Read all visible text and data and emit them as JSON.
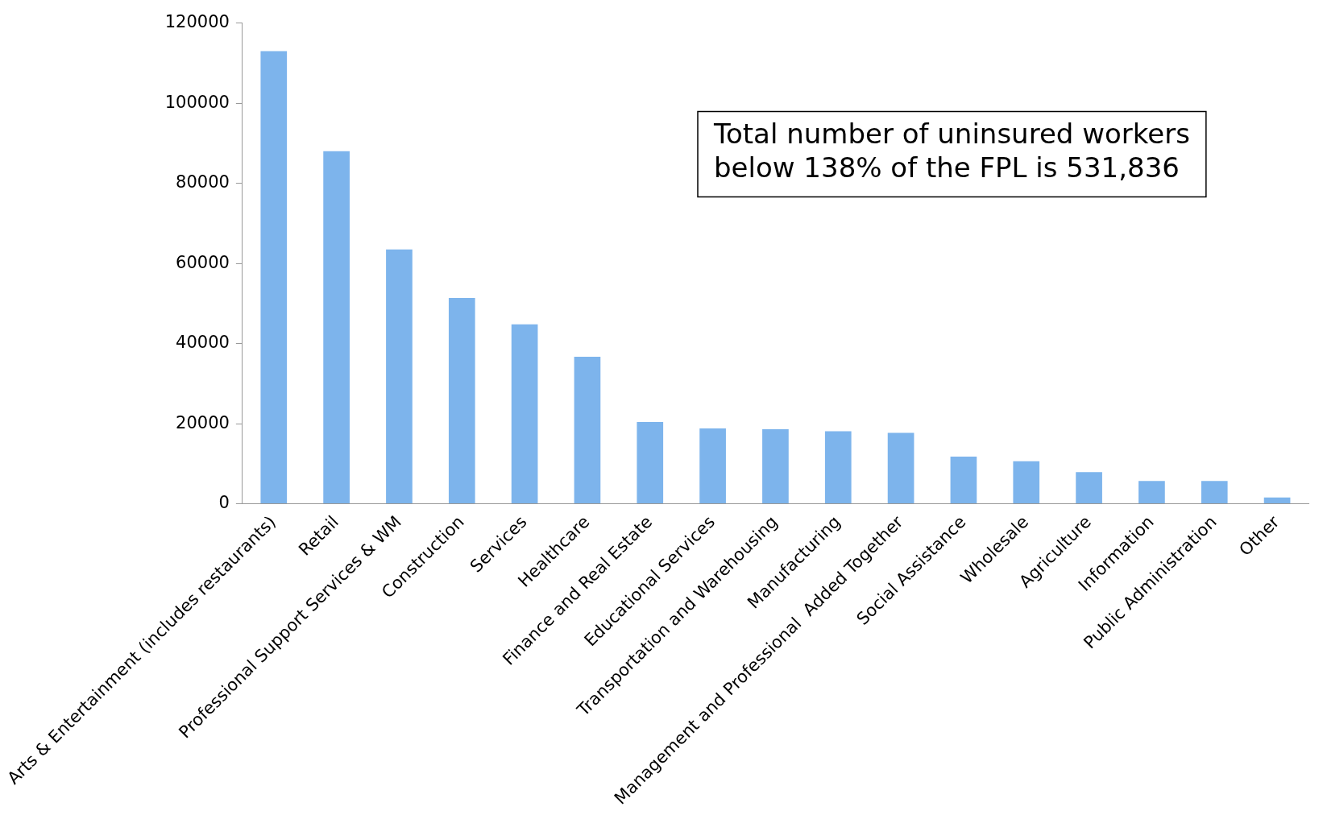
{
  "chart_data": {
    "type": "bar",
    "categories": [
      "Arts & Entertainment (includes restaurants)",
      "Retail",
      "Professional Support Services & WM",
      "Construction",
      "Services",
      "Healthcare",
      "Finance and Real Estate",
      "Educational Services",
      "Transportation and Warehousing",
      "Manufacturing",
      "Management and Professional  Added Together",
      "Social Assistance",
      "Wholesale",
      "Agriculture",
      "Information",
      "Public Administration",
      "Other"
    ],
    "values": [
      113000,
      88000,
      63500,
      51400,
      44800,
      36700,
      20400,
      18800,
      18600,
      18100,
      17700,
      11800,
      10600,
      7900,
      5700,
      5700,
      1600
    ],
    "color": "#7db4ec",
    "ylim": [
      0,
      120000
    ],
    "yticks": [
      0,
      20000,
      40000,
      60000,
      80000,
      100000,
      120000
    ],
    "grid": false,
    "legend": false,
    "annotations": [
      "Total number of uninsured workers below 138% of the FPL is 531,836"
    ]
  }
}
